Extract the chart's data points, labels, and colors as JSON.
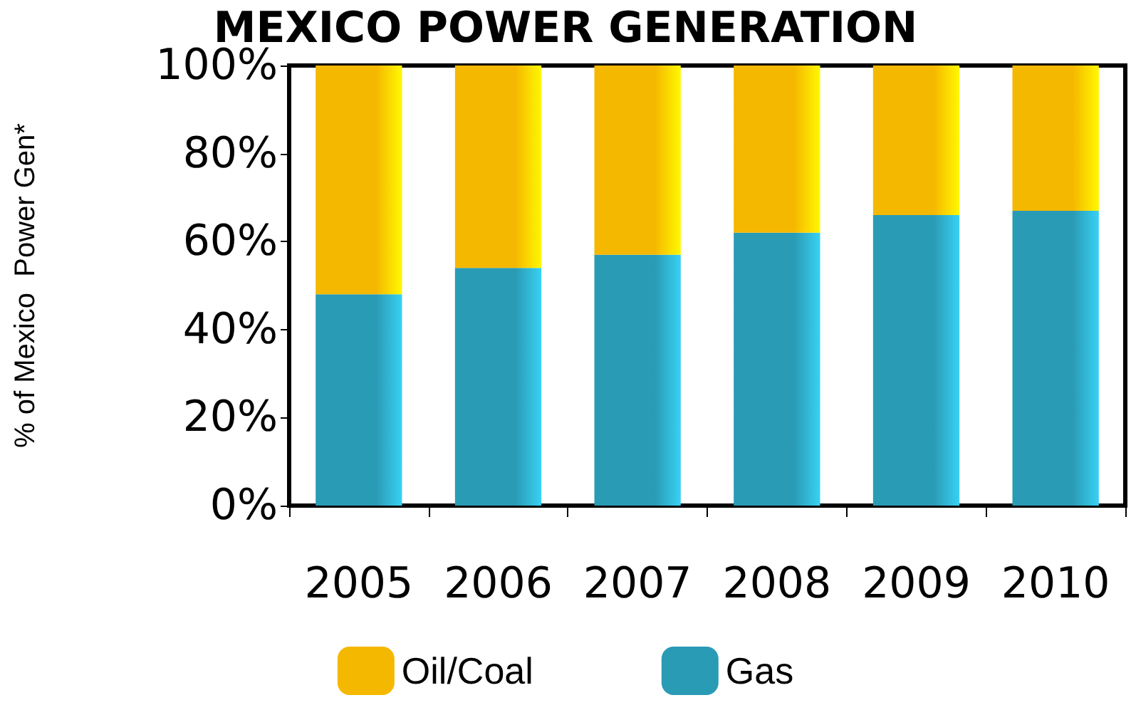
{
  "chart_data": {
    "type": "bar",
    "title": "MEXICO POWER GENERATION",
    "ylabel": "% of Mexico  Power Gen*",
    "categories": [
      "2005",
      "2006",
      "2007",
      "2008",
      "2009",
      "2010"
    ],
    "series": [
      {
        "name": "Gas",
        "color": "#2a9bb5",
        "values": [
          48,
          54,
          57,
          62,
          66,
          67
        ]
      },
      {
        "name": "Oil/Coal",
        "color": "#f5b800",
        "values": [
          52,
          46,
          43,
          38,
          34,
          33
        ]
      }
    ],
    "stacked": true,
    "ylim": [
      0,
      100
    ],
    "yticks": [
      {
        "value": 0,
        "label": "0%"
      },
      {
        "value": 20,
        "label": "20%"
      },
      {
        "value": 40,
        "label": "40%"
      },
      {
        "value": 60,
        "label": "60%"
      },
      {
        "value": 80,
        "label": "80%"
      },
      {
        "value": 100,
        "label": "100%"
      }
    ],
    "grid": false,
    "legend": "bottom"
  }
}
